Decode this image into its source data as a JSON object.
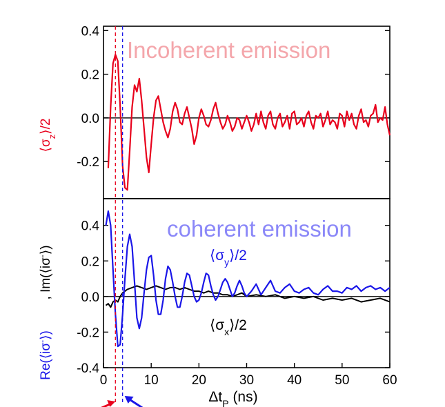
{
  "chart_data": [
    {
      "type": "line",
      "panel": "top",
      "title": "Incoherent emission",
      "ylabel_parts": {
        "open": "⟨σ",
        "sub": "z",
        "close": "⟩/2"
      },
      "ylabel_color": "#e8001c",
      "title_color": "#f4a6ab",
      "xlim": [
        0,
        60
      ],
      "ylim": [
        -0.37,
        0.42
      ],
      "yticks": [
        -0.2,
        0.0,
        0.2,
        0.4
      ],
      "ytick_labels": [
        "-0.2",
        "0.0",
        "0.2",
        "0.4"
      ],
      "zero_line": true,
      "series": [
        {
          "color": "#e8001c",
          "x": [
            1.0,
            1.5,
            2.0,
            2.5,
            3.0,
            3.5,
            4.0,
            4.5,
            5.0,
            5.5,
            6.0,
            6.5,
            7.0,
            7.5,
            8.0,
            8.5,
            9.0,
            9.5,
            10.0,
            10.5,
            11.0,
            11.5,
            12.0,
            12.5,
            13.0,
            13.5,
            14.0,
            14.5,
            15.0,
            15.5,
            16.0,
            16.5,
            17.0,
            17.5,
            18.0,
            18.5,
            19.0,
            19.5,
            20.0,
            20.5,
            21.0,
            21.5,
            22.0,
            22.5,
            23.0,
            23.5,
            24.0,
            24.5,
            25.0,
            25.5,
            26.0,
            26.5,
            27.0,
            27.5,
            28.0,
            28.5,
            29.0,
            29.5,
            30.0,
            30.5,
            31.0,
            31.5,
            32.0,
            32.5,
            33.0,
            33.5,
            34.0,
            34.5,
            35.0,
            35.5,
            36.0,
            36.5,
            37.0,
            37.5,
            38.0,
            38.5,
            39.0,
            39.5,
            40.0,
            40.5,
            41.0,
            41.5,
            42.0,
            42.5,
            43.0,
            43.5,
            44.0,
            44.5,
            45.0,
            45.5,
            46.0,
            46.5,
            47.0,
            47.5,
            48.0,
            48.5,
            49.0,
            49.5,
            50.0,
            50.5,
            51.0,
            51.5,
            52.0,
            52.5,
            53.0,
            53.5,
            54.0,
            54.5,
            55.0,
            55.5,
            56.0,
            56.5,
            57.0,
            57.5,
            58.0,
            58.5,
            59.0,
            59.5,
            60.0
          ],
          "y": [
            -0.23,
            0.05,
            0.25,
            0.29,
            0.26,
            0.05,
            -0.22,
            -0.32,
            -0.33,
            -0.15,
            0.05,
            0.15,
            0.12,
            0.18,
            0.08,
            -0.05,
            -0.18,
            -0.25,
            -0.12,
            0.0,
            0.08,
            0.1,
            0.04,
            -0.02,
            -0.06,
            -0.09,
            -0.05,
            0.03,
            0.07,
            0.04,
            -0.02,
            -0.03,
            0.02,
            0.05,
            0.0,
            -0.05,
            -0.12,
            -0.08,
            0.0,
            0.04,
            0.01,
            -0.03,
            -0.04,
            -0.01,
            0.04,
            0.07,
            0.02,
            -0.02,
            -0.05,
            -0.03,
            0.01,
            -0.02,
            -0.06,
            -0.04,
            0.0,
            -0.01,
            -0.05,
            -0.02,
            0.01,
            -0.02,
            -0.06,
            -0.03,
            0.02,
            -0.03,
            0.03,
            -0.02,
            -0.05,
            0.01,
            0.03,
            -0.03,
            -0.05,
            0.0,
            0.02,
            -0.04,
            -0.02,
            0.01,
            -0.05,
            0.02,
            0.03,
            -0.03,
            -0.02,
            0.0,
            -0.04,
            0.01,
            0.03,
            -0.02,
            -0.05,
            0.01,
            0.0,
            0.02,
            -0.04,
            -0.01,
            0.03,
            -0.03,
            -0.01,
            -0.02,
            -0.05,
            0.02,
            0.01,
            -0.04,
            0.03,
            -0.01,
            0.02,
            -0.03,
            -0.05,
            0.01,
            0.04,
            -0.02,
            -0.01,
            -0.04,
            0.01,
            0.02,
            0.06,
            -0.02,
            0.0,
            -0.01,
            0.05,
            -0.03,
            -0.08
          ]
        }
      ]
    },
    {
      "type": "line",
      "panel": "bottom",
      "title": "coherent emission",
      "title_color": "#8b88f8",
      "ylabel_left_parts": {
        "text": "Re(⟨iσ",
        "sup": "-",
        "close": "⟩)"
      },
      "ylabel_left_color": "#1a16e8",
      "ylabel_right_parts": {
        "text": ", Im(⟨iσ",
        "sup": "-",
        "close": "⟩)"
      },
      "ylabel_right_color": "#000000",
      "xlabel_parts": {
        "text": "Δt",
        "sub": "P",
        "close": " (ns)"
      },
      "xlim": [
        0,
        60
      ],
      "ylim": [
        -0.4,
        0.55
      ],
      "yticks": [
        -0.4,
        -0.2,
        0.0,
        0.2,
        0.4
      ],
      "ytick_labels": [
        "-0.4",
        "-0.2",
        "0.0",
        "0.2",
        "0.4"
      ],
      "xticks": [
        0,
        10,
        20,
        30,
        40,
        50,
        60
      ],
      "xtick_labels": [
        "0",
        "10",
        "20",
        "30",
        "40",
        "50",
        "60"
      ],
      "zero_line": true,
      "annotations": [
        {
          "parts": {
            "open": "⟨σ",
            "sub": "y",
            "close": "⟩/2"
          },
          "color": "#1a16e8"
        },
        {
          "parts": {
            "open": "⟨σ",
            "sub": "x",
            "close": "⟩/2"
          },
          "color": "#000000"
        }
      ],
      "series": [
        {
          "color": "#1a16e8",
          "x": [
            0.5,
            1.0,
            1.5,
            2.0,
            2.5,
            3.0,
            3.5,
            4.0,
            4.5,
            5.0,
            5.5,
            6.0,
            6.5,
            7.0,
            7.5,
            8.0,
            8.5,
            9.0,
            9.5,
            10.0,
            10.5,
            11.0,
            11.5,
            12.0,
            12.5,
            13.0,
            13.5,
            14.0,
            14.5,
            15.0,
            15.5,
            16.0,
            16.5,
            17.0,
            17.5,
            18.0,
            18.5,
            19.0,
            19.5,
            20.0,
            20.5,
            21.0,
            21.5,
            22.0,
            22.5,
            23.0,
            23.5,
            24.0,
            24.5,
            25.0,
            25.5,
            26.0,
            26.5,
            27.0,
            27.5,
            28.0,
            28.5,
            29.0,
            29.5,
            30.0,
            31.0,
            32.0,
            33.0,
            34.0,
            35.0,
            36.0,
            37.0,
            38.0,
            39.0,
            40.0,
            41.0,
            42.0,
            43.0,
            44.0,
            45.0,
            46.0,
            47.0,
            48.0,
            49.0,
            50.0,
            51.0,
            52.0,
            53.0,
            54.0,
            55.0,
            56.0,
            57.0,
            58.0,
            59.0,
            60.0
          ],
          "y": [
            0.4,
            0.48,
            0.4,
            0.15,
            -0.1,
            -0.28,
            -0.27,
            -0.1,
            0.1,
            0.28,
            0.35,
            0.28,
            0.08,
            -0.12,
            -0.18,
            -0.12,
            0.02,
            0.15,
            0.22,
            0.23,
            0.12,
            -0.02,
            -0.1,
            -0.1,
            -0.02,
            0.1,
            0.17,
            0.15,
            0.08,
            0.0,
            -0.06,
            -0.06,
            0.0,
            0.08,
            0.13,
            0.12,
            0.06,
            0.0,
            -0.03,
            -0.02,
            0.02,
            0.08,
            0.13,
            0.12,
            0.06,
            0.01,
            -0.02,
            0.0,
            0.04,
            0.08,
            0.1,
            0.08,
            0.04,
            0.0,
            0.02,
            0.06,
            0.09,
            0.06,
            0.02,
            0.0,
            0.03,
            0.07,
            0.01,
            0.05,
            0.09,
            0.03,
            0.02,
            0.05,
            0.07,
            0.03,
            0.02,
            0.04,
            0.05,
            0.02,
            0.01,
            0.04,
            0.06,
            0.03,
            0.03,
            0.02,
            0.05,
            0.04,
            0.06,
            0.03,
            0.05,
            0.06,
            0.04,
            0.05,
            0.03,
            0.05
          ]
        },
        {
          "color": "#000000",
          "x": [
            0.5,
            1.0,
            1.5,
            2.0,
            2.5,
            3.0,
            3.5,
            4.0,
            4.5,
            5.0,
            6.0,
            7.0,
            8.0,
            9.0,
            10.0,
            11.0,
            12.0,
            13.0,
            14.0,
            15.0,
            16.0,
            17.0,
            18.0,
            19.0,
            20.0,
            21.0,
            22.0,
            23.0,
            24.0,
            25.0,
            26.0,
            27.0,
            28.0,
            29.0,
            30.0,
            32.0,
            34.0,
            36.0,
            38.0,
            40.0,
            42.0,
            44.0,
            46.0,
            48.0,
            50.0,
            52.0,
            54.0,
            56.0,
            58.0,
            60.0
          ],
          "y": [
            -0.05,
            -0.04,
            -0.06,
            -0.03,
            -0.02,
            -0.03,
            0.0,
            0.02,
            0.03,
            0.04,
            0.05,
            0.06,
            0.05,
            0.04,
            0.05,
            0.06,
            0.05,
            0.04,
            0.05,
            0.05,
            0.04,
            0.05,
            0.04,
            0.03,
            0.03,
            0.02,
            0.03,
            0.02,
            0.02,
            0.01,
            0.01,
            0.0,
            0.01,
            0.02,
            0.0,
            0.01,
            0.0,
            0.01,
            -0.01,
            0.0,
            -0.01,
            0.0,
            -0.02,
            -0.01,
            -0.02,
            -0.01,
            -0.03,
            -0.02,
            -0.01,
            -0.03
          ]
        }
      ]
    }
  ],
  "reference_lines": [
    {
      "x": 2.5,
      "color": "#e8001c"
    },
    {
      "x": 4.0,
      "color": "#1a16e8"
    }
  ]
}
